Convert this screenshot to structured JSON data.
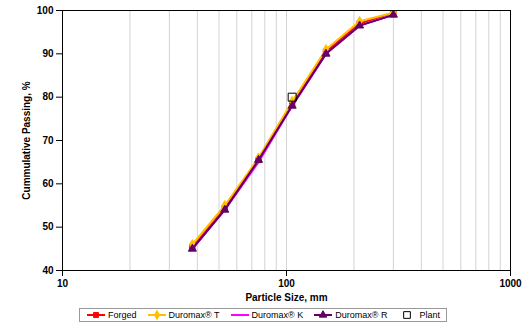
{
  "chart_data": {
    "type": "line",
    "x_label": "Particle Size, mm",
    "y_label": "Cummulative Passing, %",
    "log": "x",
    "grid": true,
    "legend": "bottom",
    "x": [
      38,
      53,
      75,
      106,
      150,
      212,
      300
    ],
    "xlim": [
      10,
      1000
    ],
    "xticks": [
      10,
      100,
      1000
    ],
    "ylim": [
      40,
      100
    ],
    "yticks": [
      40,
      50,
      60,
      70,
      80,
      90,
      100
    ],
    "series": [
      {
        "name": "Forged",
        "color": "#ff0000",
        "marker": "square",
        "line_style": "solid",
        "values": [
          45.5,
          54.5,
          65.5,
          78.5,
          90.5,
          97,
          99.5
        ]
      },
      {
        "name": "Duromax® T",
        "color": "#ffc000",
        "marker": "diamond",
        "line_style": "solid",
        "values": [
          46,
          55,
          66,
          79,
          91,
          97.5,
          99.5
        ]
      },
      {
        "name": "Duromax® K",
        "color": "#ff00ff",
        "marker": "none",
        "line_style": "solid",
        "values": [
          45,
          54,
          65,
          78,
          90,
          96.5,
          99
        ]
      },
      {
        "name": "Duromax® R",
        "color": "#660066",
        "marker": "triangle",
        "line_style": "solid",
        "values": [
          45,
          54,
          65.5,
          78,
          90,
          96.5,
          99
        ]
      },
      {
        "name": "Plant",
        "color": "#000000",
        "marker": "square-open",
        "line_style": "none",
        "values": [
          null,
          null,
          null,
          80,
          null,
          null,
          null
        ]
      }
    ]
  }
}
